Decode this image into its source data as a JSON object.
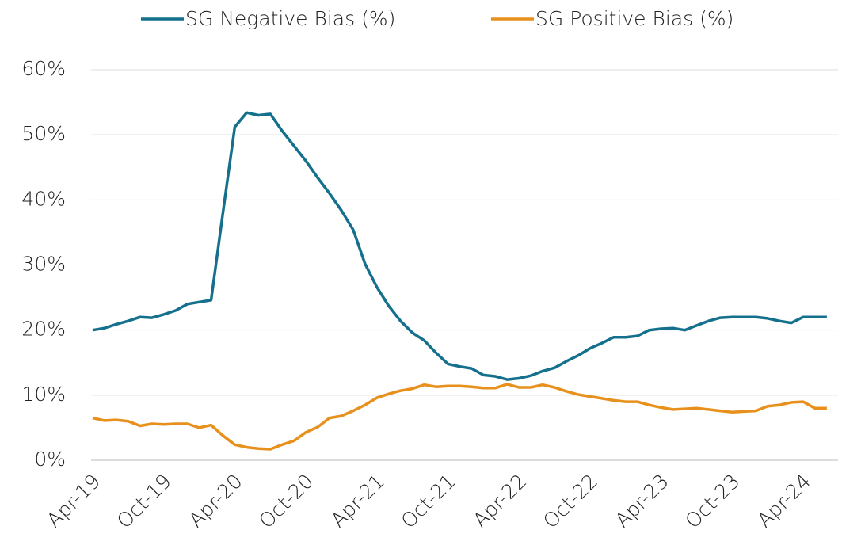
{
  "chart_data": {
    "type": "line",
    "categories": [
      "Apr-19",
      null,
      null,
      null,
      null,
      null,
      "Oct-19",
      null,
      null,
      null,
      null,
      null,
      "Apr-20",
      null,
      null,
      null,
      null,
      null,
      "Oct-20",
      null,
      null,
      null,
      null,
      null,
      "Apr-21",
      null,
      null,
      null,
      null,
      null,
      "Oct-21",
      null,
      null,
      null,
      null,
      null,
      "Apr-22",
      null,
      null,
      null,
      null,
      null,
      "Oct-22",
      null,
      null,
      null,
      null,
      null,
      "Apr-23",
      null,
      null,
      null,
      null,
      null,
      "Oct-23",
      null,
      null,
      null,
      null,
      null,
      "Apr-24",
      null,
      null
    ],
    "series": [
      {
        "name": "SG Negative Bias (%)",
        "color": "#14708c",
        "values": [
          20.0,
          20.3,
          20.9,
          21.4,
          22.0,
          21.9,
          22.4,
          23.0,
          24.0,
          24.3,
          24.6,
          38.0,
          51.2,
          53.4,
          53.0,
          53.2,
          50.6,
          48.3,
          46.0,
          43.4,
          41.0,
          38.4,
          35.4,
          30.2,
          26.6,
          23.7,
          21.4,
          19.6,
          18.4,
          16.5,
          14.8,
          14.4,
          14.1,
          13.1,
          12.9,
          12.4,
          12.6,
          13.0,
          13.7,
          14.2,
          15.2,
          16.1,
          17.2,
          18.0,
          18.9,
          18.9,
          19.1,
          20.0,
          20.2,
          20.3,
          20.0,
          20.7,
          21.4,
          21.9,
          22.0,
          22.0,
          22.0,
          21.8,
          21.4,
          21.1,
          22.0,
          22.0,
          22.0
        ]
      },
      {
        "name": "SG Positive Bias (%)",
        "color": "#e8901c",
        "values": [
          6.5,
          6.1,
          6.2,
          6.0,
          5.3,
          5.6,
          5.5,
          5.6,
          5.6,
          5.0,
          5.4,
          3.8,
          2.4,
          2.0,
          1.8,
          1.7,
          2.4,
          3.0,
          4.3,
          5.1,
          6.5,
          6.8,
          7.6,
          8.5,
          9.6,
          10.2,
          10.7,
          11.0,
          11.6,
          11.3,
          11.4,
          11.4,
          11.3,
          11.1,
          11.1,
          11.7,
          11.2,
          11.2,
          11.6,
          11.2,
          10.6,
          10.1,
          9.8,
          9.5,
          9.2,
          9.0,
          9.0,
          8.5,
          8.1,
          7.8,
          7.9,
          8.0,
          7.8,
          7.6,
          7.4,
          7.5,
          7.6,
          8.3,
          8.5,
          8.9,
          9.0,
          8.0,
          8.0
        ]
      }
    ],
    "ylim": [
      0,
      60
    ],
    "yticks": [
      {
        "value": 0,
        "label": "0%"
      },
      {
        "value": 10,
        "label": "10%"
      },
      {
        "value": 20,
        "label": "20%"
      },
      {
        "value": 30,
        "label": "30%"
      },
      {
        "value": 40,
        "label": "40%"
      },
      {
        "value": 50,
        "label": "50%"
      },
      {
        "value": 60,
        "label": "60%"
      }
    ],
    "grid": true,
    "legend": "top"
  }
}
